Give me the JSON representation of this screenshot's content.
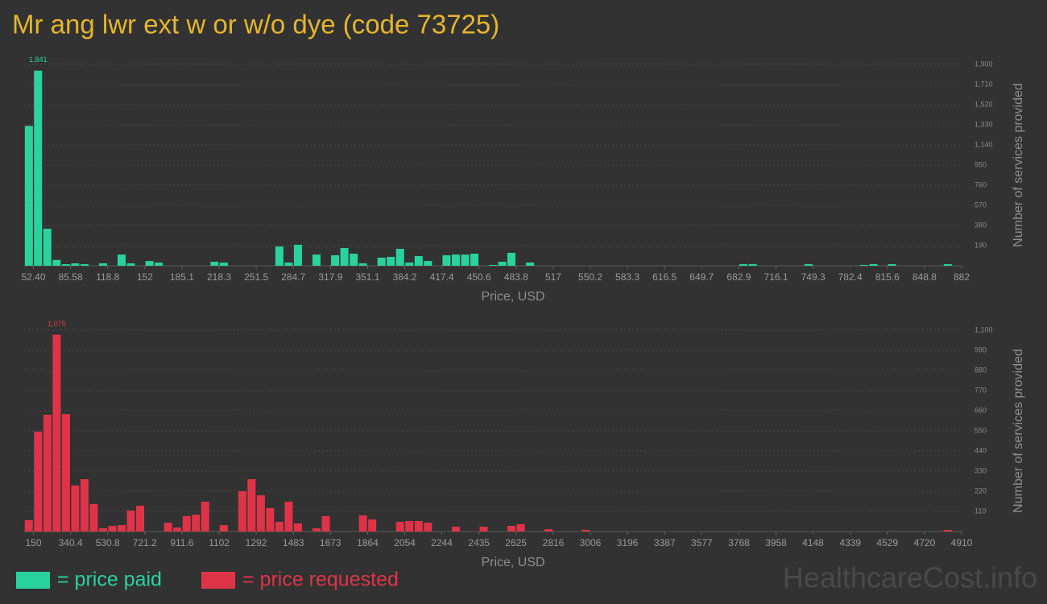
{
  "title": "Mr ang lwr ext w or w/o dye (code 73725)",
  "watermark": "HealthcareCost.info",
  "chart_data": [
    {
      "type": "bar",
      "xlabel": "Price, USD",
      "ylabel": "Number of services provided",
      "grid": true,
      "xlim": [
        44.1,
        882
      ],
      "ylim": [
        0,
        1900
      ],
      "xticks": [
        {
          "value": 52.4,
          "label": "52.40"
        },
        85.58,
        118.8,
        152,
        185.1,
        218.3,
        251.5,
        284.7,
        317.9,
        351.1,
        384.2,
        417.4,
        450.6,
        483.8,
        517,
        550.2,
        583.3,
        616.5,
        649.7,
        682.9,
        716.1,
        749.3,
        782.4,
        815.6,
        848.8,
        882
      ],
      "yticks": [
        190,
        380,
        570,
        760,
        950,
        {
          "value": 1140,
          "label": "1,140"
        },
        {
          "value": 1330,
          "label": "1,330"
        },
        {
          "value": 1520,
          "label": "1,520"
        },
        {
          "value": 1710,
          "label": "1,710"
        },
        {
          "value": 1900,
          "label": "1,900"
        }
      ],
      "x": [
        48.3,
        56.5,
        64.8,
        73.1,
        81.4,
        89.7,
        98.0,
        114.6,
        131.2,
        139.5,
        156.1,
        164.4,
        214.2,
        222.5,
        272.2,
        280.5,
        288.8,
        305.4,
        322.0,
        330.3,
        338.6,
        346.9,
        363.5,
        371.8,
        380.1,
        388.4,
        396.7,
        405.0,
        421.6,
        429.9,
        438.2,
        446.5,
        463.1,
        471.4,
        479.6,
        496.2,
        687.0,
        695.3,
        745.1,
        794.9,
        803.2,
        819.8,
        869.6
      ],
      "series": [
        {
          "name": "= price paid",
          "color": "#2ad39c",
          "values": [
            1320,
            1841,
            350,
            55,
            15,
            23,
            15,
            23,
            106,
            23,
            45,
            30,
            38,
            30,
            182,
            30,
            198,
            106,
            99,
            167,
            114,
            23,
            76,
            84,
            160,
            30,
            91,
            45,
            99,
            106,
            106,
            114,
            8,
            38,
            122,
            30,
            15,
            15,
            15,
            8,
            15,
            15,
            15
          ],
          "value_labels": [
            null,
            "1,841",
            null,
            null,
            null,
            null,
            null,
            null,
            null,
            null,
            null,
            null,
            null,
            null,
            null,
            null,
            null,
            null,
            null,
            null,
            null,
            null,
            null,
            null,
            null,
            null,
            null,
            null,
            null,
            null,
            null,
            null,
            null,
            null,
            null,
            null,
            null,
            null,
            null,
            null,
            null,
            null,
            null
          ]
        }
      ]
    },
    {
      "type": "bar",
      "xlabel": "Price, USD",
      "ylabel": "Number of services provided",
      "grid": true,
      "xlim": [
        102.4,
        4910
      ],
      "ylim": [
        0,
        1100
      ],
      "xticks": [
        150,
        340.4,
        530.8,
        721.2,
        911.6,
        1102,
        1292,
        1483,
        1673,
        1864,
        2054,
        2244,
        2435,
        2625,
        2816,
        3006,
        3196,
        3387,
        3577,
        3768,
        3958,
        4148,
        4339,
        4529,
        4720,
        4910
      ],
      "yticks": [
        110,
        220,
        330,
        440,
        550,
        660,
        770,
        880,
        990,
        {
          "value": 1100,
          "label": "1,100"
        }
      ],
      "x": [
        126.2,
        173.8,
        221.4,
        269.0,
        316.6,
        364.2,
        411.8,
        459.4,
        507.0,
        554.6,
        602.2,
        649.8,
        697.4,
        840.2,
        887.8,
        935.4,
        983.0,
        1030.6,
        1125.8,
        1221.0,
        1268.6,
        1316.2,
        1363.8,
        1411.4,
        1459.0,
        1506.6,
        1601.8,
        1649.4,
        1839.8,
        1887.4,
        2030.2,
        2077.8,
        2125.4,
        2173.0,
        2315.8,
        2458.6,
        2601.4,
        2649.0,
        2791.8,
        2982.2,
        4838.6
      ],
      "series": [
        {
          "name": "= price requested",
          "color": "#df3448",
          "values": [
            62,
            546,
            638,
            1075,
            642,
            251,
            286,
            150,
            18,
            31,
            35,
            114,
            141,
            48,
            22,
            84,
            92,
            163,
            35,
            220,
            286,
            198,
            128,
            53,
            163,
            44,
            18,
            84,
            88,
            66,
            53,
            57,
            57,
            48,
            26,
            26,
            31,
            40,
            13,
            9,
            9
          ],
          "value_labels": [
            null,
            null,
            null,
            "1,075",
            null,
            null,
            null,
            null,
            null,
            null,
            null,
            null,
            null,
            null,
            null,
            null,
            null,
            null,
            null,
            null,
            null,
            null,
            null,
            null,
            null,
            null,
            null,
            null,
            null,
            null,
            null,
            null,
            null,
            null,
            null,
            null,
            null,
            null,
            null,
            null,
            null
          ]
        }
      ]
    }
  ]
}
